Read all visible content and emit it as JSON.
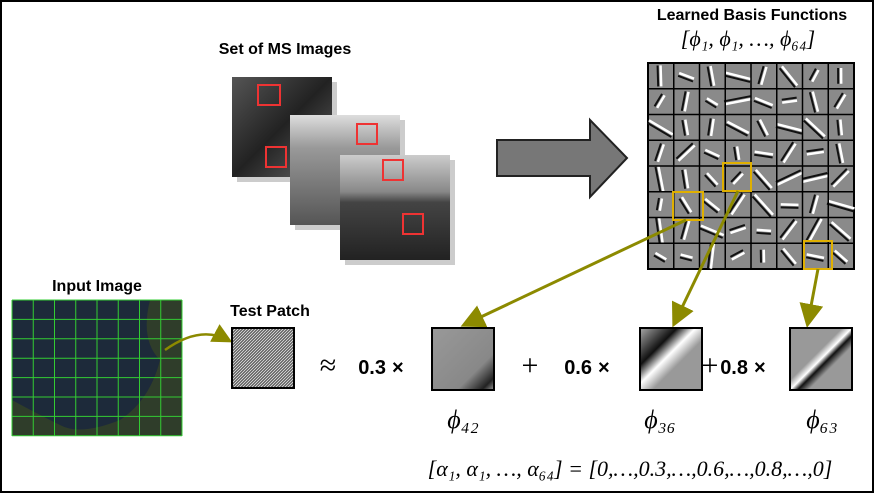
{
  "top_left": {
    "title": "Set of MS Images"
  },
  "top_right": {
    "title": "Learned Basis Functions",
    "notation": "[ϕ₁, ϕ₁, …, ϕ₆₄]"
  },
  "bottom_left": {
    "title": "Input Image"
  },
  "patch": {
    "title": "Test Patch",
    "approx": "≈"
  },
  "terms": [
    {
      "coefficient": "0.3",
      "operator": "×",
      "label": "ϕ₄₂"
    },
    {
      "plus": "+",
      "coefficient": "0.6",
      "operator": "×",
      "label": "ϕ₃₆"
    },
    {
      "plus": "+",
      "coefficient": "0.8",
      "operator": "×",
      "label": "ϕ₆₃"
    }
  ],
  "equation": "[α₁, α₁, …, α₆₄] = [0,…,0.3,…,0.6,…,0.8,…,0]"
}
